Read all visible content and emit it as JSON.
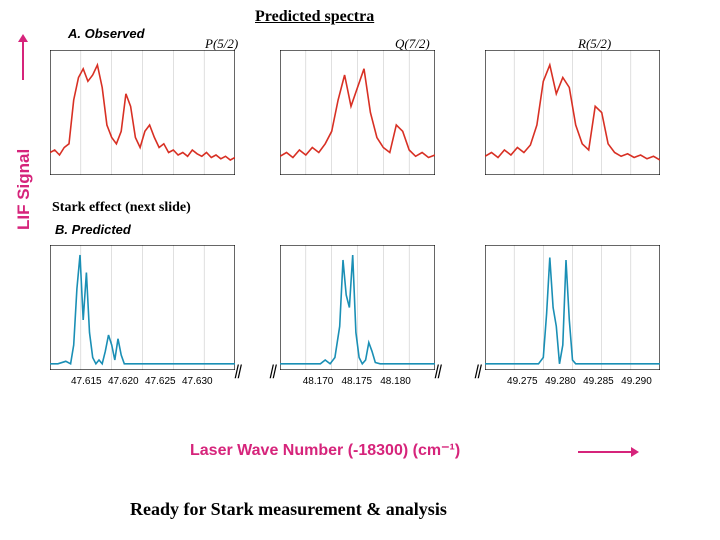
{
  "title": "Predicted spectra",
  "annotation1": "Stark effect (next slide)",
  "footer": "Ready for Stark measurement & analysis",
  "yLabel": "LIF Signal",
  "xLabel": "Laser Wave Number (-18300) (cm⁻¹)",
  "panelA": "A. Observed",
  "panelB": "B. Predicted",
  "specLabels": [
    "P(5/2)",
    "Q(7/2)",
    "R(5/2)"
  ],
  "colors": {
    "observed": "#d83024",
    "predicted": "#1a8fb5",
    "label": "#d6247b",
    "axis": "#000000",
    "tick": "#c0c0c0"
  },
  "regions": [
    {
      "xStart": 47.61,
      "xEnd": 47.635,
      "ticks": [
        "47.615",
        "47.620",
        "47.625",
        "47.630"
      ]
    },
    {
      "xStart": 48.165,
      "xEnd": 48.185,
      "ticks": [
        "48.170",
        "48.175",
        "48.180"
      ]
    },
    {
      "xStart": 49.27,
      "xEnd": 49.293,
      "ticks": [
        "49.275",
        "49.280",
        "49.285",
        "49.290"
      ]
    }
  ],
  "observed": [
    {
      "points": [
        [
          0,
          18
        ],
        [
          3,
          20
        ],
        [
          6,
          16
        ],
        [
          9,
          22
        ],
        [
          12,
          25
        ],
        [
          15,
          60
        ],
        [
          18,
          78
        ],
        [
          21,
          85
        ],
        [
          24,
          75
        ],
        [
          27,
          80
        ],
        [
          30,
          88
        ],
        [
          33,
          70
        ],
        [
          36,
          40
        ],
        [
          39,
          30
        ],
        [
          42,
          25
        ],
        [
          45,
          35
        ],
        [
          48,
          65
        ],
        [
          51,
          55
        ],
        [
          54,
          30
        ],
        [
          57,
          22
        ],
        [
          60,
          35
        ],
        [
          63,
          40
        ],
        [
          66,
          30
        ],
        [
          69,
          22
        ],
        [
          72,
          25
        ],
        [
          75,
          18
        ],
        [
          78,
          20
        ],
        [
          81,
          16
        ],
        [
          84,
          18
        ],
        [
          87,
          15
        ],
        [
          90,
          20
        ],
        [
          93,
          17
        ],
        [
          96,
          15
        ],
        [
          99,
          18
        ],
        [
          102,
          14
        ],
        [
          105,
          16
        ],
        [
          108,
          13
        ],
        [
          111,
          15
        ],
        [
          114,
          12
        ],
        [
          117,
          14
        ]
      ]
    },
    {
      "points": [
        [
          0,
          15
        ],
        [
          4,
          18
        ],
        [
          8,
          14
        ],
        [
          12,
          20
        ],
        [
          16,
          16
        ],
        [
          20,
          22
        ],
        [
          24,
          18
        ],
        [
          28,
          25
        ],
        [
          32,
          35
        ],
        [
          36,
          60
        ],
        [
          40,
          80
        ],
        [
          44,
          55
        ],
        [
          48,
          70
        ],
        [
          52,
          85
        ],
        [
          56,
          50
        ],
        [
          60,
          30
        ],
        [
          64,
          22
        ],
        [
          68,
          18
        ],
        [
          72,
          40
        ],
        [
          76,
          35
        ],
        [
          80,
          20
        ],
        [
          84,
          15
        ],
        [
          88,
          18
        ],
        [
          92,
          14
        ],
        [
          96,
          16
        ]
      ]
    },
    {
      "points": [
        [
          0,
          15
        ],
        [
          4,
          18
        ],
        [
          8,
          14
        ],
        [
          12,
          20
        ],
        [
          16,
          16
        ],
        [
          20,
          22
        ],
        [
          24,
          18
        ],
        [
          28,
          24
        ],
        [
          32,
          40
        ],
        [
          36,
          75
        ],
        [
          40,
          88
        ],
        [
          44,
          65
        ],
        [
          48,
          78
        ],
        [
          52,
          70
        ],
        [
          56,
          40
        ],
        [
          60,
          25
        ],
        [
          64,
          20
        ],
        [
          68,
          55
        ],
        [
          72,
          50
        ],
        [
          76,
          25
        ],
        [
          80,
          18
        ],
        [
          84,
          15
        ],
        [
          88,
          17
        ],
        [
          92,
          14
        ],
        [
          96,
          16
        ],
        [
          100,
          13
        ],
        [
          104,
          15
        ],
        [
          108,
          12
        ]
      ]
    }
  ],
  "predicted": [
    {
      "points": [
        [
          0,
          5
        ],
        [
          5,
          5
        ],
        [
          10,
          7
        ],
        [
          13,
          5
        ],
        [
          15,
          20
        ],
        [
          17,
          65
        ],
        [
          19,
          92
        ],
        [
          21,
          40
        ],
        [
          23,
          78
        ],
        [
          25,
          30
        ],
        [
          27,
          10
        ],
        [
          29,
          5
        ],
        [
          31,
          8
        ],
        [
          33,
          5
        ],
        [
          35,
          15
        ],
        [
          37,
          28
        ],
        [
          39,
          20
        ],
        [
          41,
          8
        ],
        [
          43,
          25
        ],
        [
          45,
          12
        ],
        [
          47,
          5
        ],
        [
          50,
          5
        ],
        [
          55,
          5
        ],
        [
          60,
          5
        ],
        [
          65,
          5
        ],
        [
          70,
          5
        ],
        [
          75,
          5
        ],
        [
          80,
          5
        ],
        [
          85,
          5
        ],
        [
          90,
          5
        ],
        [
          95,
          5
        ],
        [
          100,
          5
        ],
        [
          105,
          5
        ],
        [
          110,
          5
        ],
        [
          117,
          5
        ]
      ]
    },
    {
      "points": [
        [
          0,
          5
        ],
        [
          5,
          5
        ],
        [
          10,
          5
        ],
        [
          15,
          5
        ],
        [
          20,
          5
        ],
        [
          25,
          5
        ],
        [
          28,
          8
        ],
        [
          31,
          5
        ],
        [
          34,
          10
        ],
        [
          37,
          35
        ],
        [
          39,
          88
        ],
        [
          41,
          60
        ],
        [
          43,
          50
        ],
        [
          45,
          92
        ],
        [
          47,
          30
        ],
        [
          49,
          10
        ],
        [
          51,
          5
        ],
        [
          53,
          8
        ],
        [
          55,
          22
        ],
        [
          57,
          15
        ],
        [
          59,
          6
        ],
        [
          62,
          5
        ],
        [
          68,
          5
        ],
        [
          74,
          5
        ],
        [
          80,
          5
        ],
        [
          86,
          5
        ],
        [
          92,
          5
        ],
        [
          96,
          5
        ]
      ]
    },
    {
      "points": [
        [
          0,
          5
        ],
        [
          5,
          5
        ],
        [
          10,
          5
        ],
        [
          15,
          5
        ],
        [
          20,
          5
        ],
        [
          25,
          5
        ],
        [
          30,
          5
        ],
        [
          33,
          5
        ],
        [
          36,
          10
        ],
        [
          38,
          45
        ],
        [
          40,
          90
        ],
        [
          42,
          50
        ],
        [
          44,
          35
        ],
        [
          46,
          5
        ],
        [
          48,
          20
        ],
        [
          50,
          88
        ],
        [
          52,
          40
        ],
        [
          54,
          8
        ],
        [
          56,
          5
        ],
        [
          60,
          5
        ],
        [
          65,
          5
        ],
        [
          70,
          5
        ],
        [
          75,
          5
        ],
        [
          80,
          5
        ],
        [
          85,
          5
        ],
        [
          90,
          5
        ],
        [
          95,
          5
        ],
        [
          100,
          5
        ],
        [
          108,
          5
        ]
      ]
    }
  ],
  "layout": {
    "chartLeft": 50,
    "rowObsTop": 50,
    "rowPredTop": 245,
    "panelHeight": 125,
    "regionWidths": [
      185,
      155,
      175
    ],
    "regionGaps": [
      45,
      50
    ]
  }
}
